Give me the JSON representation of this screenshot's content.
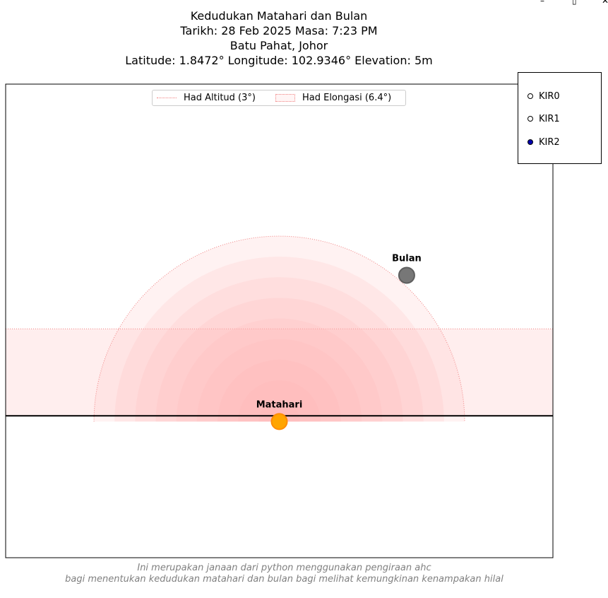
{
  "window": {
    "minimize_icon": "minimize-icon",
    "maximize_icon": "maximize-icon",
    "close_icon": "close-icon"
  },
  "title_lines": [
    "Kedudukan Matahari dan Bulan",
    "Tarikh: 28 Feb 2025  Masa: 7:23 PM",
    "Batu Pahat, Johor",
    "Latitude: 1.8472°  Longitude: 102.9346°  Elevation: 5m"
  ],
  "radio": {
    "options": [
      "KIR0",
      "KIR1",
      "KIR2"
    ],
    "selected": "KIR2",
    "selected_color": "#0000b0"
  },
  "legend": {
    "entries": [
      {
        "label": "Had Altitud (3°)"
      },
      {
        "label": "Had Elongasi (6.4°)"
      }
    ]
  },
  "footer": {
    "line1": "Ini merupakan janaan dari python menggunakan pengiraan ahc",
    "line2": "bagi menentukan kedudukan matahari dan bulan bagi melihat kemungkinan kenampakan hilal"
  },
  "chart_data": {
    "type": "scatter",
    "axes_visible": false,
    "legend_placement": "upper-center",
    "units": "degrees",
    "xlim": [
      -9.45,
      9.45
    ],
    "ylim": [
      -4.9,
      11.45
    ],
    "horizon_y": 0,
    "altitude_limit": 3,
    "elongation_limit": 6.4,
    "bodies": [
      {
        "name": "Matahari",
        "x": 0.0,
        "y": -0.2,
        "color": "#ffa500",
        "edge": "#ff8c00"
      },
      {
        "name": "Bulan",
        "x": 4.4,
        "y": 4.85,
        "color": "#777777",
        "edge": "#5e5e5e"
      }
    ],
    "colors": {
      "limit": "#f08080",
      "zone_fill": "#ffb3b3",
      "horizon": "#000000"
    }
  }
}
